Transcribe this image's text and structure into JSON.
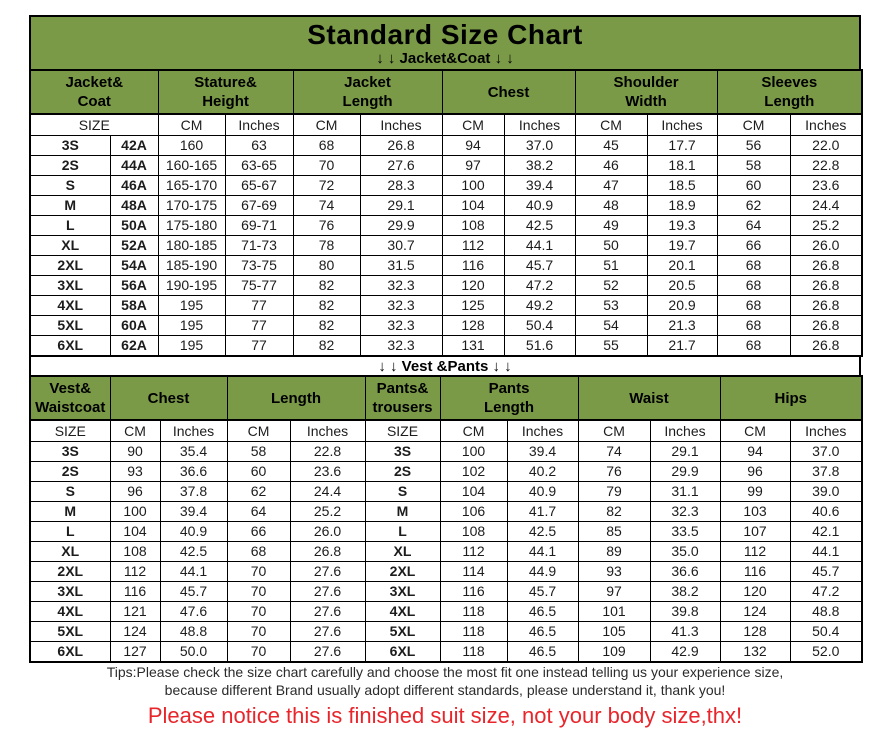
{
  "title": "Standard Size Chart",
  "colors": {
    "header_green": "#7a9a47",
    "cell_light_green": "#c9dba2",
    "cell_white": "#ffffff",
    "border_black": "#000000",
    "notice_red": "#e8252b"
  },
  "chart_data": [
    {
      "type": "table",
      "title": "Jacket&Coat",
      "section_label": "↓ ↓  Jacket&Coat ↓ ↓",
      "group_headers": [
        "Jacket&\nCoat",
        "Stature&\nHeight",
        "Jacket\nLength",
        "Chest",
        "Shoulder\nWidth",
        "Sleeves\nLength"
      ],
      "subheader": [
        "SIZE",
        "CM",
        "Inches",
        "CM",
        "Inches",
        "CM",
        "Inches",
        "CM",
        "Inches",
        "CM",
        "Inches"
      ],
      "rows": [
        [
          "3S",
          "42A",
          "160",
          "63",
          "68",
          "26.8",
          "94",
          "37.0",
          "45",
          "17.7",
          "56",
          "22.0"
        ],
        [
          "2S",
          "44A",
          "160-165",
          "63-65",
          "70",
          "27.6",
          "97",
          "38.2",
          "46",
          "18.1",
          "58",
          "22.8"
        ],
        [
          "S",
          "46A",
          "165-170",
          "65-67",
          "72",
          "28.3",
          "100",
          "39.4",
          "47",
          "18.5",
          "60",
          "23.6"
        ],
        [
          "M",
          "48A",
          "170-175",
          "67-69",
          "74",
          "29.1",
          "104",
          "40.9",
          "48",
          "18.9",
          "62",
          "24.4"
        ],
        [
          "L",
          "50A",
          "175-180",
          "69-71",
          "76",
          "29.9",
          "108",
          "42.5",
          "49",
          "19.3",
          "64",
          "25.2"
        ],
        [
          "XL",
          "52A",
          "180-185",
          "71-73",
          "78",
          "30.7",
          "112",
          "44.1",
          "50",
          "19.7",
          "66",
          "26.0"
        ],
        [
          "2XL",
          "54A",
          "185-190",
          "73-75",
          "80",
          "31.5",
          "116",
          "45.7",
          "51",
          "20.1",
          "68",
          "26.8"
        ],
        [
          "3XL",
          "56A",
          "190-195",
          "75-77",
          "82",
          "32.3",
          "120",
          "47.2",
          "52",
          "20.5",
          "68",
          "26.8"
        ],
        [
          "4XL",
          "58A",
          "195",
          "77",
          "82",
          "32.3",
          "125",
          "49.2",
          "53",
          "20.9",
          "68",
          "26.8"
        ],
        [
          "5XL",
          "60A",
          "195",
          "77",
          "82",
          "32.3",
          "128",
          "50.4",
          "54",
          "21.3",
          "68",
          "26.8"
        ],
        [
          "6XL",
          "62A",
          "195",
          "77",
          "82",
          "32.3",
          "131",
          "51.6",
          "55",
          "21.7",
          "68",
          "26.8"
        ]
      ]
    },
    {
      "type": "table",
      "title": "Vest &Pants",
      "section_label": "↓ ↓  Vest &Pants ↓ ↓",
      "group_headers": [
        "Vest&\nWaistcoat",
        "Chest",
        "Length",
        "Pants&\ntrousers",
        "Pants\nLength",
        "Waist",
        "Hips"
      ],
      "subheader": [
        "SIZE",
        "CM",
        "Inches",
        "CM",
        "Inches",
        "SIZE",
        "CM",
        "Inches",
        "CM",
        "Inches",
        "CM",
        "Inches"
      ],
      "rows": [
        [
          "3S",
          "90",
          "35.4",
          "58",
          "22.8",
          "3S",
          "100",
          "39.4",
          "74",
          "29.1",
          "94",
          "37.0"
        ],
        [
          "2S",
          "93",
          "36.6",
          "60",
          "23.6",
          "2S",
          "102",
          "40.2",
          "76",
          "29.9",
          "96",
          "37.8"
        ],
        [
          "S",
          "96",
          "37.8",
          "62",
          "24.4",
          "S",
          "104",
          "40.9",
          "79",
          "31.1",
          "99",
          "39.0"
        ],
        [
          "M",
          "100",
          "39.4",
          "64",
          "25.2",
          "M",
          "106",
          "41.7",
          "82",
          "32.3",
          "103",
          "40.6"
        ],
        [
          "L",
          "104",
          "40.9",
          "66",
          "26.0",
          "L",
          "108",
          "42.5",
          "85",
          "33.5",
          "107",
          "42.1"
        ],
        [
          "XL",
          "108",
          "42.5",
          "68",
          "26.8",
          "XL",
          "112",
          "44.1",
          "89",
          "35.0",
          "112",
          "44.1"
        ],
        [
          "2XL",
          "112",
          "44.1",
          "70",
          "27.6",
          "2XL",
          "114",
          "44.9",
          "93",
          "36.6",
          "116",
          "45.7"
        ],
        [
          "3XL",
          "116",
          "45.7",
          "70",
          "27.6",
          "3XL",
          "116",
          "45.7",
          "97",
          "38.2",
          "120",
          "47.2"
        ],
        [
          "4XL",
          "121",
          "47.6",
          "70",
          "27.6",
          "4XL",
          "118",
          "46.5",
          "101",
          "39.8",
          "124",
          "48.8"
        ],
        [
          "5XL",
          "124",
          "48.8",
          "70",
          "27.6",
          "5XL",
          "118",
          "46.5",
          "105",
          "41.3",
          "128",
          "50.4"
        ],
        [
          "6XL",
          "127",
          "50.0",
          "70",
          "27.6",
          "6XL",
          "118",
          "46.5",
          "109",
          "42.9",
          "132",
          "52.0"
        ]
      ]
    }
  ],
  "footer": {
    "tips_line1": "Tips:Please check the size chart carefully and choose the most fit one instead telling us your experience size,",
    "tips_line2": "because different Brand usually adopt different standards, please understand it, thank you!",
    "notice": "Please notice this is finished suit size, not your body size,thx!"
  }
}
